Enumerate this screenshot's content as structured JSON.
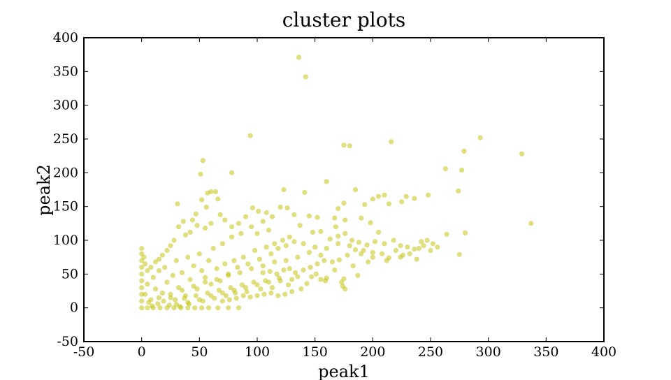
{
  "chart_data": {
    "type": "scatter",
    "title": "cluster plots",
    "xlabel": "peak1",
    "ylabel": "peak2",
    "xlim": [
      -50,
      400
    ],
    "ylim": [
      -50,
      400
    ],
    "xticks": [
      "-50",
      "0",
      "50",
      "100",
      "150",
      "200",
      "250",
      "300",
      "350",
      "400"
    ],
    "yticks": [
      "-50",
      "0",
      "50",
      "100",
      "150",
      "200",
      "250",
      "300",
      "350",
      "400"
    ],
    "grid": false,
    "marker_color": "#bfbf00",
    "marker_alpha": 0.5,
    "series": [
      {
        "points": [
          [
            136,
            371
          ],
          [
            142,
            342
          ],
          [
            94,
            255
          ],
          [
            175,
            241
          ],
          [
            180,
            240
          ],
          [
            216,
            246
          ],
          [
            293,
            252
          ],
          [
            279,
            232
          ],
          [
            329,
            228
          ],
          [
            263,
            206
          ],
          [
            277,
            204
          ],
          [
            274,
            173
          ],
          [
            337,
            125
          ],
          [
            280,
            111
          ],
          [
            264,
            109
          ],
          [
            275,
            79
          ],
          [
            53,
            218
          ],
          [
            51,
            198
          ],
          [
            78,
            200
          ],
          [
            60,
            172
          ],
          [
            64,
            172
          ],
          [
            57,
            170
          ],
          [
            66,
            161
          ],
          [
            52,
            160
          ],
          [
            31,
            154
          ],
          [
            56,
            149
          ],
          [
            47,
            139
          ],
          [
            123,
            175
          ],
          [
            141,
            171
          ],
          [
            160,
            187
          ],
          [
            185,
            175
          ],
          [
            193,
            153
          ],
          [
            205,
            165
          ],
          [
            210,
            167
          ],
          [
            214,
            154
          ],
          [
            225,
            157
          ],
          [
            229,
            165
          ],
          [
            236,
            162
          ],
          [
            248,
            167
          ],
          [
            200,
            161
          ],
          [
            175,
            155
          ],
          [
            170,
            147
          ],
          [
            120,
            149
          ],
          [
            126,
            148
          ],
          [
            96,
            148
          ],
          [
            101,
            143
          ],
          [
            108,
            141
          ],
          [
            113,
            135
          ],
          [
            132,
            138
          ],
          [
            137,
            122
          ],
          [
            145,
            136
          ],
          [
            152,
            134
          ],
          [
            167,
            133
          ],
          [
            176,
            130
          ],
          [
            190,
            133
          ],
          [
            198,
            126
          ],
          [
            205,
            112
          ],
          [
            168,
            120
          ],
          [
            155,
            113
          ],
          [
            148,
            112
          ],
          [
            163,
            102
          ],
          [
            170,
            106
          ],
          [
            176,
            110
          ],
          [
            182,
            100
          ],
          [
            188,
            97
          ],
          [
            195,
            93
          ],
          [
            202,
            98
          ],
          [
            210,
            95
          ],
          [
            218,
            100
          ],
          [
            224,
            92
          ],
          [
            230,
            90
          ],
          [
            236,
            87
          ],
          [
            242,
            98
          ],
          [
            247,
            100
          ],
          [
            252,
            95
          ],
          [
            256,
            90
          ],
          [
            240,
            88
          ],
          [
            232,
            80
          ],
          [
            224,
            75
          ],
          [
            214,
            74
          ],
          [
            208,
            80
          ],
          [
            200,
            82
          ],
          [
            192,
            85
          ],
          [
            185,
            86
          ],
          [
            178,
            78
          ],
          [
            171,
            71
          ],
          [
            165,
            68
          ],
          [
            158,
            70
          ],
          [
            152,
            65
          ],
          [
            146,
            60
          ],
          [
            140,
            56
          ],
          [
            133,
            52
          ],
          [
            128,
            58
          ],
          [
            123,
            56
          ],
          [
            117,
            50
          ],
          [
            111,
            54
          ],
          [
            105,
            52
          ],
          [
            147,
            46
          ],
          [
            175,
            43
          ],
          [
            173,
            38
          ],
          [
            160,
            44
          ],
          [
            155,
            42
          ],
          [
            174,
            32
          ],
          [
            176,
            28
          ],
          [
            138,
            28
          ],
          [
            130,
            24
          ],
          [
            124,
            20
          ],
          [
            118,
            18
          ],
          [
            112,
            22
          ],
          [
            106,
            20
          ],
          [
            100,
            18
          ],
          [
            94,
            16
          ],
          [
            88,
            18
          ],
          [
            82,
            14
          ],
          [
            76,
            12
          ],
          [
            70,
            10
          ],
          [
            84,
            0
          ],
          [
            75,
            0
          ],
          [
            66,
            0
          ],
          [
            58,
            0
          ],
          [
            52,
            0
          ],
          [
            46,
            0
          ],
          [
            40,
            0
          ],
          [
            34,
            0
          ],
          [
            28,
            0
          ],
          [
            22,
            0
          ],
          [
            16,
            0
          ],
          [
            10,
            0
          ],
          [
            5,
            0
          ],
          [
            0,
            0
          ],
          [
            0,
            10
          ],
          [
            0,
            20
          ],
          [
            0,
            30
          ],
          [
            0,
            40
          ],
          [
            0,
            50
          ],
          [
            0,
            60
          ],
          [
            0,
            70
          ],
          [
            0,
            80
          ],
          [
            0,
            88
          ],
          [
            3,
            20
          ],
          [
            5,
            35
          ],
          [
            8,
            12
          ],
          [
            10,
            45
          ],
          [
            12,
            28
          ],
          [
            15,
            55
          ],
          [
            18,
            22
          ],
          [
            20,
            60
          ],
          [
            22,
            38
          ],
          [
            25,
            15
          ],
          [
            27,
            48
          ],
          [
            30,
            70
          ],
          [
            32,
            30
          ],
          [
            35,
            52
          ],
          [
            38,
            18
          ],
          [
            40,
            75
          ],
          [
            42,
            42
          ],
          [
            45,
            62
          ],
          [
            48,
            28
          ],
          [
            50,
            80
          ],
          [
            52,
            55
          ],
          [
            55,
            45
          ],
          [
            58,
            70
          ],
          [
            60,
            35
          ],
          [
            62,
            88
          ],
          [
            65,
            58
          ],
          [
            68,
            40
          ],
          [
            70,
            95
          ],
          [
            72,
            65
          ],
          [
            75,
            50
          ],
          [
            78,
            105
          ],
          [
            80,
            70
          ],
          [
            83,
            60
          ],
          [
            86,
            110
          ],
          [
            88,
            75
          ],
          [
            92,
            65
          ],
          [
            95,
            120
          ],
          [
            98,
            85
          ],
          [
            102,
            72
          ],
          [
            105,
            128
          ],
          [
            108,
            90
          ],
          [
            112,
            80
          ],
          [
            115,
            95
          ],
          [
            118,
            88
          ],
          [
            122,
            100
          ],
          [
            125,
            92
          ],
          [
            128,
            105
          ],
          [
            132,
            98
          ],
          [
            60,
            125
          ],
          [
            55,
            118
          ],
          [
            48,
            122
          ],
          [
            42,
            112
          ],
          [
            38,
            108
          ],
          [
            32,
            120
          ],
          [
            28,
            100
          ],
          [
            25,
            92
          ],
          [
            22,
            85
          ],
          [
            18,
            78
          ],
          [
            15,
            72
          ],
          [
            12,
            68
          ],
          [
            8,
            60
          ],
          [
            5,
            55
          ],
          [
            3,
            65
          ],
          [
            2,
            75
          ],
          [
            44,
            130
          ],
          [
            36,
            128
          ],
          [
            68,
            138
          ],
          [
            72,
            130
          ],
          [
            84,
            125
          ],
          [
            90,
            135
          ],
          [
            78,
            120
          ],
          [
            100,
            110
          ],
          [
            110,
            115
          ],
          [
            140,
            95
          ],
          [
            150,
            90
          ],
          [
            160,
            88
          ],
          [
            170,
            95
          ],
          [
            180,
            92
          ],
          [
            190,
            80
          ],
          [
            200,
            75
          ],
          [
            145,
            82
          ],
          [
            155,
            78
          ],
          [
            135,
            75
          ],
          [
            125,
            70
          ],
          [
            115,
            68
          ],
          [
            105,
            62
          ],
          [
            95,
            58
          ],
          [
            85,
            52
          ],
          [
            75,
            48
          ],
          [
            65,
            42
          ],
          [
            55,
            38
          ],
          [
            45,
            32
          ],
          [
            35,
            26
          ],
          [
            25,
            20
          ],
          [
            15,
            15
          ],
          [
            30,
            5
          ],
          [
            40,
            8
          ],
          [
            50,
            12
          ],
          [
            60,
            18
          ],
          [
            70,
            22
          ],
          [
            80,
            26
          ],
          [
            90,
            30
          ],
          [
            100,
            34
          ],
          [
            110,
            38
          ],
          [
            120,
            40
          ],
          [
            130,
            42
          ],
          [
            6,
            8
          ],
          [
            9,
            3
          ],
          [
            14,
            6
          ],
          [
            19,
            10
          ],
          [
            24,
            4
          ],
          [
            29,
            12
          ],
          [
            33,
            2
          ],
          [
            37,
            14
          ],
          [
            41,
            6
          ],
          [
            47,
            18
          ],
          [
            53,
            10
          ],
          [
            57,
            22
          ],
          [
            63,
            14
          ],
          [
            67,
            26
          ],
          [
            73,
            18
          ],
          [
            77,
            30
          ],
          [
            81,
            22
          ],
          [
            87,
            34
          ],
          [
            91,
            24
          ],
          [
            97,
            38
          ],
          [
            103,
            28
          ],
          [
            107,
            40
          ],
          [
            113,
            30
          ],
          [
            119,
            44
          ],
          [
            127,
            34
          ],
          [
            135,
            46
          ],
          [
            143,
            36
          ],
          [
            151,
            50
          ],
          [
            159,
            40
          ],
          [
            167,
            56
          ],
          [
            183,
            62
          ],
          [
            187,
            48
          ],
          [
            196,
            68
          ],
          [
            220,
            85
          ],
          [
            226,
            78
          ],
          [
            244,
            92
          ],
          [
            250,
            85
          ],
          [
            238,
            72
          ],
          [
            212,
            70
          ]
        ]
      }
    ]
  }
}
